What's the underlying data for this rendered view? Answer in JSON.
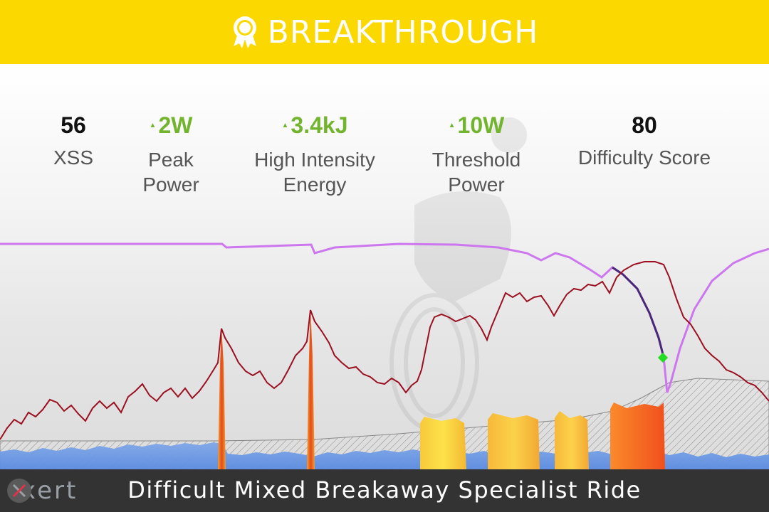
{
  "banner": {
    "title": "BREAKTHROUGH",
    "icon": "award-ribbon-icon",
    "background": "#fbd800"
  },
  "stats": [
    {
      "value": "56",
      "label": "XSS",
      "trend": "none"
    },
    {
      "value": "2W",
      "label": "Peak Power",
      "label_lines": [
        "Peak",
        "Power"
      ],
      "trend": "up"
    },
    {
      "value": "3.4kJ",
      "label": "High Intensity Energy",
      "label_lines": [
        "High Intensity",
        "Energy"
      ],
      "trend": "up"
    },
    {
      "value": "10W",
      "label": "Threshold Power",
      "label_lines": [
        "Threshold",
        "Power"
      ],
      "trend": "up"
    },
    {
      "value": "80",
      "label": "Difficulty Score",
      "trend": "none"
    }
  ],
  "colors": {
    "accent_up": "#73b42e",
    "mpa_line": "#cc77ee",
    "power_line": "#9b1020",
    "breakthrough_marker": "#22dd22",
    "footer": "#333333"
  },
  "footer": {
    "logo_text": "xert",
    "title": "Difficult Mixed Breakaway Specialist Ride"
  }
}
